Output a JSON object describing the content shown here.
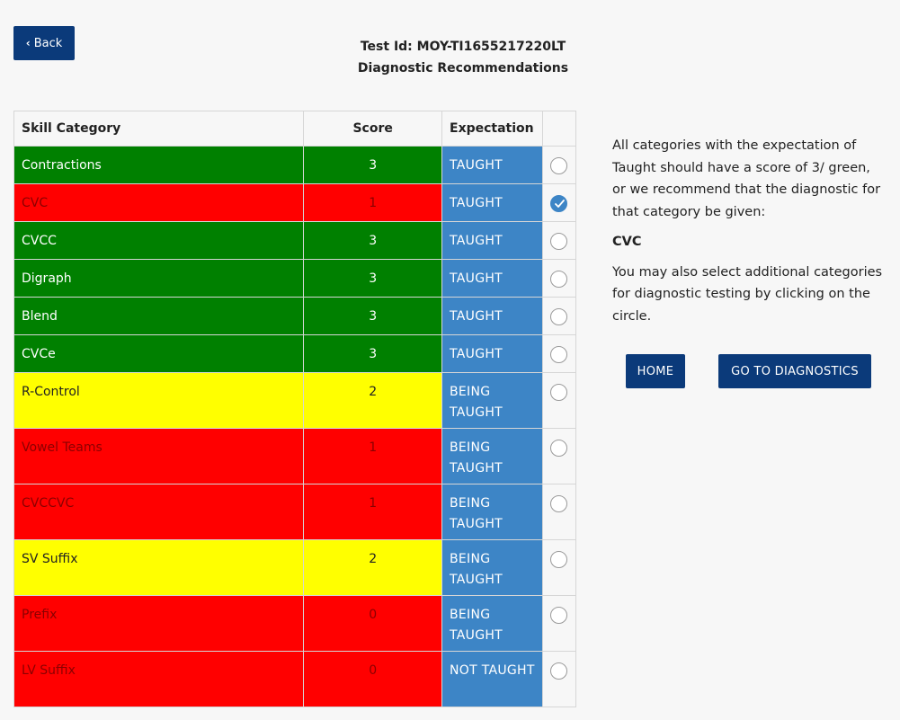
{
  "back": {
    "label": "Back",
    "icon": "chevron-left-icon"
  },
  "header": {
    "test_id": "Test Id: MOY-TI1655217220LT",
    "title": "Diagnostic Recommendations"
  },
  "table": {
    "columns": [
      "Skill Category",
      "Score",
      "Expectation",
      ""
    ],
    "rows": [
      {
        "skill": "Contractions",
        "score": "3",
        "expectation": "TAUGHT",
        "color": "green",
        "selected": false
      },
      {
        "skill": "CVC",
        "score": "1",
        "expectation": "TAUGHT",
        "color": "red",
        "selected": true
      },
      {
        "skill": "CVCC",
        "score": "3",
        "expectation": "TAUGHT",
        "color": "green",
        "selected": false
      },
      {
        "skill": "Digraph",
        "score": "3",
        "expectation": "TAUGHT",
        "color": "green",
        "selected": false
      },
      {
        "skill": "Blend",
        "score": "3",
        "expectation": "TAUGHT",
        "color": "green",
        "selected": false
      },
      {
        "skill": "CVCe",
        "score": "3",
        "expectation": "TAUGHT",
        "color": "green",
        "selected": false
      },
      {
        "skill": "R-Control",
        "score": "2",
        "expectation": "BEING TAUGHT",
        "color": "yellow",
        "selected": false
      },
      {
        "skill": "Vowel Teams",
        "score": "1",
        "expectation": "BEING TAUGHT",
        "color": "red",
        "selected": false
      },
      {
        "skill": "CVCCVC",
        "score": "1",
        "expectation": "BEING TAUGHT",
        "color": "red",
        "selected": false
      },
      {
        "skill": "SV Suffix",
        "score": "2",
        "expectation": "BEING TAUGHT",
        "color": "yellow",
        "selected": false
      },
      {
        "skill": "Prefix",
        "score": "0",
        "expectation": "BEING TAUGHT",
        "color": "red",
        "selected": false
      },
      {
        "skill": "LV Suffix",
        "score": "0",
        "expectation": "NOT TAUGHT",
        "color": "red",
        "selected": false
      }
    ]
  },
  "side": {
    "paragraph1": "All categories with the expectation of Taught should have a score of 3/ green, or we recommend that the diagnostic for that category be given:",
    "recommended": "CVC",
    "paragraph2": "You may also select additional categories for diagnostic testing by clicking on the circle."
  },
  "buttons": {
    "home": "HOME",
    "diagnostics": "GO TO DIAGNOSTICS"
  },
  "colors": {
    "green": "#008000",
    "red": "#ff0000",
    "yellow": "#ffff00",
    "expectation_blue": "#3d85c6",
    "button_navy": "#0b3a7a"
  }
}
